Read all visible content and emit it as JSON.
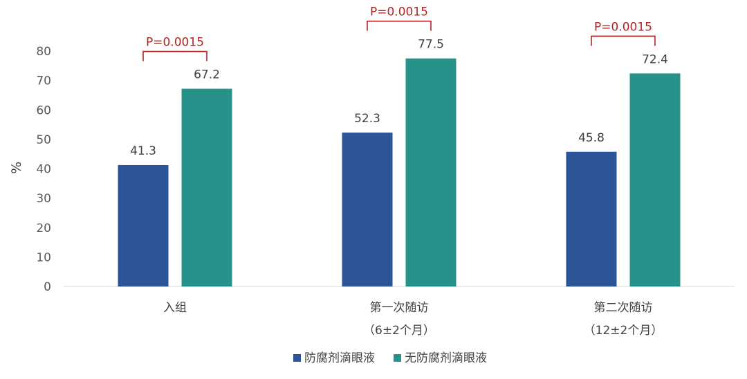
{
  "chart_data": {
    "type": "bar",
    "ylabel": "%",
    "ylim": [
      0,
      80
    ],
    "yticks": [
      0,
      10,
      20,
      30,
      40,
      50,
      60,
      70,
      80
    ],
    "grid": false,
    "legend_position": "bottom",
    "categories": [
      [
        "入组"
      ],
      [
        "第一次随访",
        "（6±2个月）"
      ],
      [
        "第二次随访",
        "（12±2个月）"
      ]
    ],
    "series": [
      {
        "name": "防腐剂滴眼液",
        "color": "#2b5597",
        "values": [
          41.3,
          52.3,
          45.8
        ]
      },
      {
        "name": "无防腐剂滴眼液",
        "color": "#279289",
        "values": [
          67.2,
          77.5,
          72.4
        ]
      }
    ],
    "annotations": [
      {
        "category_index": 0,
        "text": "P=0.0015",
        "color": "#b22222"
      },
      {
        "category_index": 1,
        "text": "P=0.0015",
        "color": "#b22222"
      },
      {
        "category_index": 2,
        "text": "P=0.0015",
        "color": "#b22222"
      }
    ]
  }
}
